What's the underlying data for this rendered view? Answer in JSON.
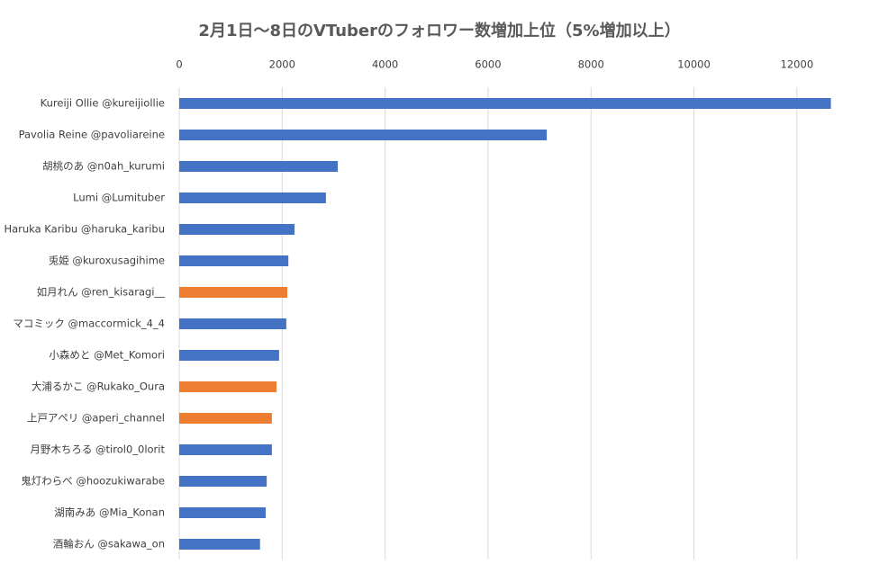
{
  "chart_data": {
    "type": "barh",
    "title": "2月1日〜8日のVTuberのフォロワー数増加上位（5%増加以上）",
    "categories": [
      "Kureiji Ollie @kureijiollie",
      "Pavolia Reine @pavoliareine",
      "胡桃のあ @n0ah_kurumi",
      "Lumi @Lumituber",
      "Haruka Karibu @haruka_karibu",
      "兎姫 @kuroxusagihime",
      "如月れん @ren_kisaragi__",
      "マコミック @maccormick_4_4",
      "小森めと @Met_Komori",
      "大浦るかこ @Rukako_Oura",
      "上戸アペリ @aperi_channel",
      "月野木ちろる @tirol0_0lorit",
      "鬼灯わらべ @hoozukiwarabe",
      "湖南みあ @Mia_Konan",
      "酒輪おん @sakawa_on"
    ],
    "values": [
      12660,
      7140,
      3080,
      2850,
      2240,
      2120,
      2100,
      2080,
      1940,
      1890,
      1800,
      1800,
      1700,
      1680,
      1570
    ],
    "colors": [
      "#4472c4",
      "#4472c4",
      "#4472c4",
      "#4472c4",
      "#4472c4",
      "#4472c4",
      "#ed7d31",
      "#4472c4",
      "#4472c4",
      "#ed7d31",
      "#ed7d31",
      "#4472c4",
      "#4472c4",
      "#4472c4",
      "#4472c4"
    ],
    "xlim": [
      0,
      13000
    ],
    "xticks": [
      0,
      2000,
      4000,
      6000,
      8000,
      10000,
      12000
    ],
    "grid": true
  }
}
